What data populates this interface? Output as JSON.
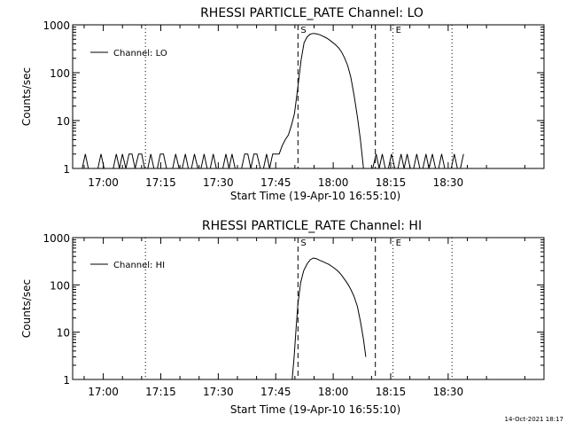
{
  "chart_data": [
    {
      "type": "line",
      "title": "RHESSI PARTICLE_RATE Channel: LO",
      "xlabel": "Start Time (19-Apr-10 16:55:10)",
      "ylabel": "Counts/sec",
      "yscale": "log",
      "ylim": [
        1,
        1000
      ],
      "xlim_minutes": [
        -8,
        115
      ],
      "ytick_labels": [
        "1",
        "10",
        "100",
        "1000"
      ],
      "ytick_values": [
        1,
        10,
        100,
        1000
      ],
      "xtick_labels": [
        "17:00",
        "17:15",
        "17:30",
        "17:45",
        "18:00",
        "18:15",
        "18:30"
      ],
      "xtick_minutes": [
        0,
        15,
        30,
        45,
        60,
        75,
        90
      ],
      "legend": {
        "label": "Channel: LO",
        "placement": "top-left"
      },
      "markers": [
        {
          "label": "",
          "minute": 11.0,
          "style": "dotted"
        },
        {
          "label": "S",
          "minute": 50.8,
          "style": "dashed"
        },
        {
          "label": "",
          "minute": 71.0,
          "style": "dashed"
        },
        {
          "label": "E",
          "minute": 75.6,
          "style": "dotted"
        },
        {
          "label": "",
          "minute": 91.0,
          "style": "dotted"
        }
      ],
      "series": [
        {
          "name": "Channel: LO",
          "x_minutes": [
            -8.0,
            -5.5,
            -4.7,
            -3.9,
            -1.4,
            -0.6,
            0.2,
            2.6,
            3.4,
            4.2,
            5.0,
            5.9,
            6.7,
            7.5,
            8.3,
            9.2,
            10.0,
            10.8,
            11.6,
            12.4,
            13.2,
            14.1,
            14.9,
            15.7,
            16.5,
            17.3,
            18.1,
            18.9,
            19.8,
            20.6,
            21.4,
            22.2,
            23.0,
            23.8,
            24.7,
            25.5,
            26.3,
            27.1,
            27.9,
            28.7,
            29.5,
            30.4,
            31.2,
            32.0,
            32.8,
            33.6,
            34.4,
            35.3,
            36.1,
            36.9,
            37.7,
            38.5,
            39.3,
            40.1,
            41.0,
            41.8,
            42.6,
            43.4,
            44.2,
            45.0,
            45.9,
            46.7,
            47.5,
            48.3,
            49.1,
            49.9,
            50.7,
            51.6,
            52.4,
            53.2,
            54.0,
            54.8,
            55.6,
            56.5,
            57.3,
            58.1,
            58.9,
            59.7,
            60.5,
            61.4,
            62.2,
            63.0,
            63.8,
            64.6,
            65.4,
            66.3,
            67.1,
            67.9,
            68.7,
            69.5,
            70.3,
            71.2,
            72.0,
            72.8,
            73.6,
            74.4,
            75.2,
            76.1,
            76.9,
            77.7,
            78.5,
            79.3,
            80.1,
            81.0,
            81.8,
            82.6,
            83.4,
            84.2,
            85.0,
            85.9,
            86.7,
            87.5,
            88.3,
            89.1,
            89.9,
            90.8,
            91.6,
            92.4,
            93.2,
            94.0
          ],
          "y": [
            1,
            1,
            2,
            1,
            1,
            2,
            1,
            1,
            2,
            1,
            2,
            1,
            2,
            2,
            1,
            2,
            2,
            1,
            1,
            2,
            1,
            1,
            2,
            2,
            1,
            1,
            1,
            2,
            1,
            1,
            2,
            1,
            1,
            2,
            1,
            1,
            2,
            1,
            1,
            2,
            1,
            1,
            1,
            2,
            1,
            2,
            1,
            1,
            1,
            2,
            2,
            1,
            2,
            2,
            1,
            1,
            2,
            1,
            2,
            2,
            2,
            3,
            4,
            5,
            8,
            14,
            45,
            180,
            420,
            560,
            640,
            660,
            650,
            620,
            580,
            540,
            490,
            440,
            390,
            330,
            270,
            200,
            140,
            80,
            35,
            12,
            4,
            1,
            1,
            1,
            1,
            2,
            1,
            2,
            1,
            1,
            2,
            1,
            1,
            2,
            1,
            2,
            1,
            1,
            2,
            1,
            1,
            2,
            1,
            2,
            1,
            1,
            2,
            1,
            1,
            1,
            2,
            1,
            1,
            2
          ]
        }
      ]
    },
    {
      "type": "line",
      "title": "RHESSI PARTICLE_RATE Channel: HI",
      "xlabel": "Start Time (19-Apr-10 16:55:10)",
      "ylabel": "Counts/sec",
      "yscale": "log",
      "ylim": [
        1,
        1000
      ],
      "xlim_minutes": [
        -8,
        115
      ],
      "ytick_labels": [
        "1",
        "10",
        "100",
        "1000"
      ],
      "ytick_values": [
        1,
        10,
        100,
        1000
      ],
      "xtick_labels": [
        "17:00",
        "17:15",
        "17:30",
        "17:45",
        "18:00",
        "18:15",
        "18:30"
      ],
      "xtick_minutes": [
        0,
        15,
        30,
        45,
        60,
        75,
        90
      ],
      "legend": {
        "label": "Channel: HI",
        "placement": "top-left"
      },
      "markers": [
        {
          "label": "",
          "minute": 11.0,
          "style": "dotted"
        },
        {
          "label": "S",
          "minute": 50.8,
          "style": "dashed"
        },
        {
          "label": "",
          "minute": 71.0,
          "style": "dashed"
        },
        {
          "label": "E",
          "minute": 75.6,
          "style": "dotted"
        },
        {
          "label": "",
          "minute": 91.0,
          "style": "dotted"
        }
      ],
      "series": [
        {
          "name": "Channel: HI",
          "x_minutes": [
            49.3,
            49.8,
            50.3,
            50.8,
            51.5,
            52.3,
            53.2,
            54.0,
            54.8,
            55.6,
            56.5,
            57.3,
            58.1,
            58.9,
            59.7,
            60.5,
            61.4,
            62.2,
            63.0,
            63.8,
            64.6,
            65.4,
            66.3,
            67.1,
            67.9,
            68.5
          ],
          "y": [
            1,
            3,
            12,
            40,
            110,
            200,
            280,
            340,
            370,
            360,
            330,
            310,
            290,
            270,
            245,
            220,
            190,
            160,
            130,
            105,
            80,
            58,
            35,
            17,
            7,
            3
          ]
        }
      ]
    }
  ],
  "footer": {
    "timestamp": "14-Oct-2021 18:17"
  },
  "colors": {
    "line": "#000000",
    "background": "#ffffff"
  }
}
